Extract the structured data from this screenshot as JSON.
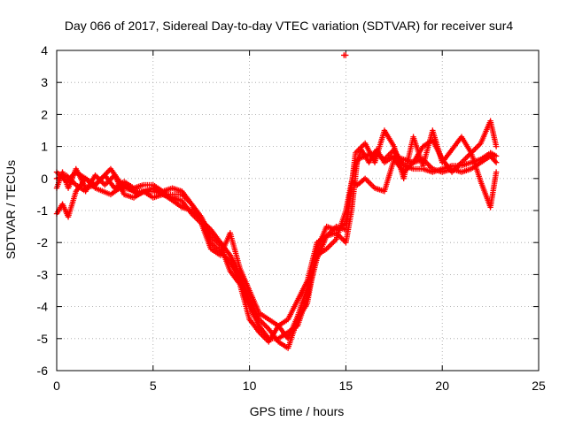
{
  "chart_data": {
    "type": "scatter",
    "title": "Day 066 of 2017, Sidereal Day-to-day VTEC variation (SDTVAR) for receiver sur4",
    "xlabel": "GPS time / hours",
    "ylabel": "SDTVAR / TECUs",
    "xlim": [
      0,
      25
    ],
    "ylim": [
      -6,
      4
    ],
    "xticks": [
      0,
      5,
      10,
      15,
      20,
      25
    ],
    "yticks": [
      -6,
      -5,
      -4,
      -3,
      -2,
      -1,
      0,
      1,
      2,
      3,
      4
    ],
    "grid": true,
    "marker": "+",
    "color": "#ff0000",
    "outlier": {
      "x": 14.9,
      "y": 3.85
    },
    "tracks": [
      {
        "name": "track-1",
        "points": [
          [
            0.0,
            -0.3
          ],
          [
            0.3,
            0.2
          ],
          [
            0.6,
            -0.3
          ],
          [
            1.0,
            0.3
          ],
          [
            1.5,
            -0.3
          ],
          [
            2.0,
            -0.2
          ],
          [
            2.8,
            0.3
          ],
          [
            3.5,
            -0.3
          ],
          [
            4.2,
            -0.4
          ],
          [
            5.0,
            -0.4
          ],
          [
            5.8,
            -0.5
          ],
          [
            6.5,
            -0.5
          ],
          [
            7.0,
            -0.8
          ],
          [
            7.5,
            -1.3
          ],
          [
            8.0,
            -2.0
          ],
          [
            8.5,
            -2.3
          ],
          [
            9.0,
            -2.6
          ],
          [
            9.5,
            -3.2
          ],
          [
            10.0,
            -4.0
          ],
          [
            10.5,
            -4.6
          ],
          [
            11.0,
            -5.0
          ],
          [
            11.5,
            -5.0
          ],
          [
            12.0,
            -4.8
          ],
          [
            12.5,
            -4.6
          ],
          [
            13.0,
            -3.7
          ],
          [
            13.5,
            -2.5
          ],
          [
            14.0,
            -1.8
          ],
          [
            14.5,
            -1.7
          ],
          [
            15.0,
            -2.0
          ],
          [
            15.3,
            -1.0
          ],
          [
            15.6,
            0.6
          ],
          [
            16.0,
            0.7
          ],
          [
            16.5,
            0.8
          ],
          [
            17.0,
            0.6
          ],
          [
            17.5,
            0.9
          ],
          [
            18.0,
            0.4
          ],
          [
            18.5,
            0.3
          ],
          [
            19.0,
            0.3
          ],
          [
            19.5,
            0.2
          ],
          [
            20.0,
            0.3
          ],
          [
            20.5,
            0.4
          ],
          [
            21.0,
            0.4
          ],
          [
            21.5,
            0.5
          ],
          [
            22.0,
            0.6
          ],
          [
            22.5,
            0.8
          ],
          [
            22.8,
            0.7
          ]
        ]
      },
      {
        "name": "track-2",
        "points": [
          [
            0.0,
            -1.1
          ],
          [
            0.3,
            -0.8
          ],
          [
            0.6,
            -1.2
          ],
          [
            1.0,
            -0.4
          ],
          [
            1.5,
            0.0
          ],
          [
            2.0,
            -0.3
          ],
          [
            2.8,
            -0.5
          ],
          [
            3.5,
            -0.2
          ],
          [
            4.2,
            -0.5
          ],
          [
            5.0,
            -0.3
          ],
          [
            5.8,
            -0.6
          ],
          [
            6.5,
            -0.9
          ],
          [
            7.0,
            -1.0
          ],
          [
            7.5,
            -1.3
          ],
          [
            8.0,
            -1.6
          ],
          [
            8.5,
            -2.0
          ],
          [
            9.0,
            -2.4
          ],
          [
            9.5,
            -3.0
          ],
          [
            10.0,
            -3.8
          ],
          [
            10.5,
            -4.4
          ],
          [
            11.0,
            -4.7
          ],
          [
            11.5,
            -5.1
          ],
          [
            12.0,
            -5.3
          ],
          [
            12.5,
            -4.4
          ],
          [
            13.0,
            -3.9
          ],
          [
            13.5,
            -2.2
          ],
          [
            14.0,
            -1.5
          ],
          [
            14.5,
            -1.6
          ],
          [
            15.0,
            -1.4
          ],
          [
            15.4,
            0.2
          ],
          [
            15.8,
            0.9
          ],
          [
            16.2,
            0.5
          ],
          [
            16.6,
            0.9
          ],
          [
            17.0,
            0.5
          ],
          [
            17.5,
            0.7
          ],
          [
            18.0,
            0.6
          ],
          [
            18.5,
            0.5
          ],
          [
            19.0,
            0.6
          ],
          [
            19.5,
            0.3
          ],
          [
            20.0,
            0.2
          ],
          [
            20.5,
            0.3
          ],
          [
            21.0,
            0.2
          ],
          [
            21.5,
            0.3
          ],
          [
            22.0,
            0.5
          ],
          [
            22.5,
            0.7
          ],
          [
            22.8,
            0.5
          ]
        ]
      },
      {
        "name": "track-3",
        "points": [
          [
            0.0,
            0.0
          ],
          [
            0.5,
            0.1
          ],
          [
            1.0,
            -0.2
          ],
          [
            1.5,
            -0.4
          ],
          [
            2.0,
            0.1
          ],
          [
            2.5,
            -0.2
          ],
          [
            3.0,
            0.1
          ],
          [
            3.5,
            -0.5
          ],
          [
            4.0,
            -0.6
          ],
          [
            4.5,
            -0.4
          ],
          [
            5.0,
            -0.6
          ],
          [
            5.5,
            -0.5
          ],
          [
            6.0,
            -0.6
          ],
          [
            6.5,
            -0.7
          ],
          [
            7.0,
            -1.1
          ],
          [
            7.5,
            -1.4
          ],
          [
            8.0,
            -2.2
          ],
          [
            8.5,
            -2.4
          ],
          [
            9.0,
            -1.7
          ],
          [
            9.5,
            -2.8
          ],
          [
            10.0,
            -3.5
          ],
          [
            10.5,
            -4.2
          ],
          [
            11.0,
            -4.4
          ],
          [
            11.5,
            -4.6
          ],
          [
            12.0,
            -5.0
          ],
          [
            12.5,
            -4.3
          ],
          [
            13.0,
            -3.4
          ],
          [
            13.5,
            -2.4
          ],
          [
            14.0,
            -2.2
          ],
          [
            14.5,
            -1.9
          ],
          [
            15.0,
            -1.0
          ],
          [
            15.3,
            -0.1
          ],
          [
            15.6,
            -0.2
          ],
          [
            16.0,
            0.0
          ],
          [
            16.5,
            -0.3
          ],
          [
            17.0,
            -0.4
          ],
          [
            17.5,
            0.6
          ],
          [
            18.0,
            0.2
          ],
          [
            18.5,
            0.5
          ],
          [
            19.0,
            1.0
          ],
          [
            19.5,
            1.2
          ],
          [
            20.0,
            0.6
          ],
          [
            20.5,
            0.2
          ],
          [
            21.0,
            0.5
          ],
          [
            21.5,
            0.8
          ],
          [
            22.0,
            1.1
          ],
          [
            22.5,
            1.8
          ],
          [
            22.8,
            1.0
          ]
        ]
      },
      {
        "name": "track-4",
        "points": [
          [
            0.0,
            0.2
          ],
          [
            0.5,
            -0.1
          ],
          [
            1.0,
            0.2
          ],
          [
            1.5,
            0.0
          ],
          [
            2.0,
            -0.2
          ],
          [
            2.5,
            0.1
          ],
          [
            3.0,
            -0.3
          ],
          [
            3.5,
            -0.1
          ],
          [
            4.0,
            -0.3
          ],
          [
            4.5,
            -0.2
          ],
          [
            5.0,
            -0.2
          ],
          [
            5.5,
            -0.4
          ],
          [
            6.0,
            -0.3
          ],
          [
            6.5,
            -0.4
          ],
          [
            7.0,
            -0.8
          ],
          [
            7.5,
            -1.2
          ],
          [
            8.0,
            -1.8
          ],
          [
            8.5,
            -2.1
          ],
          [
            9.0,
            -2.9
          ],
          [
            9.5,
            -3.3
          ],
          [
            10.0,
            -4.4
          ],
          [
            10.5,
            -4.8
          ],
          [
            11.0,
            -5.1
          ],
          [
            11.5,
            -4.6
          ],
          [
            12.0,
            -4.4
          ],
          [
            12.5,
            -3.8
          ],
          [
            13.0,
            -3.2
          ],
          [
            13.5,
            -2.0
          ],
          [
            14.0,
            -1.8
          ],
          [
            14.5,
            -1.5
          ],
          [
            15.0,
            -1.6
          ],
          [
            15.5,
            0.8
          ],
          [
            16.0,
            1.1
          ],
          [
            16.5,
            0.5
          ],
          [
            17.0,
            1.5
          ],
          [
            17.5,
            1.0
          ],
          [
            18.0,
            0.0
          ],
          [
            18.5,
            1.3
          ],
          [
            19.0,
            0.4
          ],
          [
            19.5,
            1.5
          ],
          [
            20.0,
            0.5
          ],
          [
            20.5,
            0.9
          ],
          [
            21.0,
            1.3
          ],
          [
            21.5,
            0.8
          ],
          [
            22.0,
            -0.1
          ],
          [
            22.5,
            -0.9
          ],
          [
            22.8,
            0.2
          ]
        ]
      }
    ]
  }
}
